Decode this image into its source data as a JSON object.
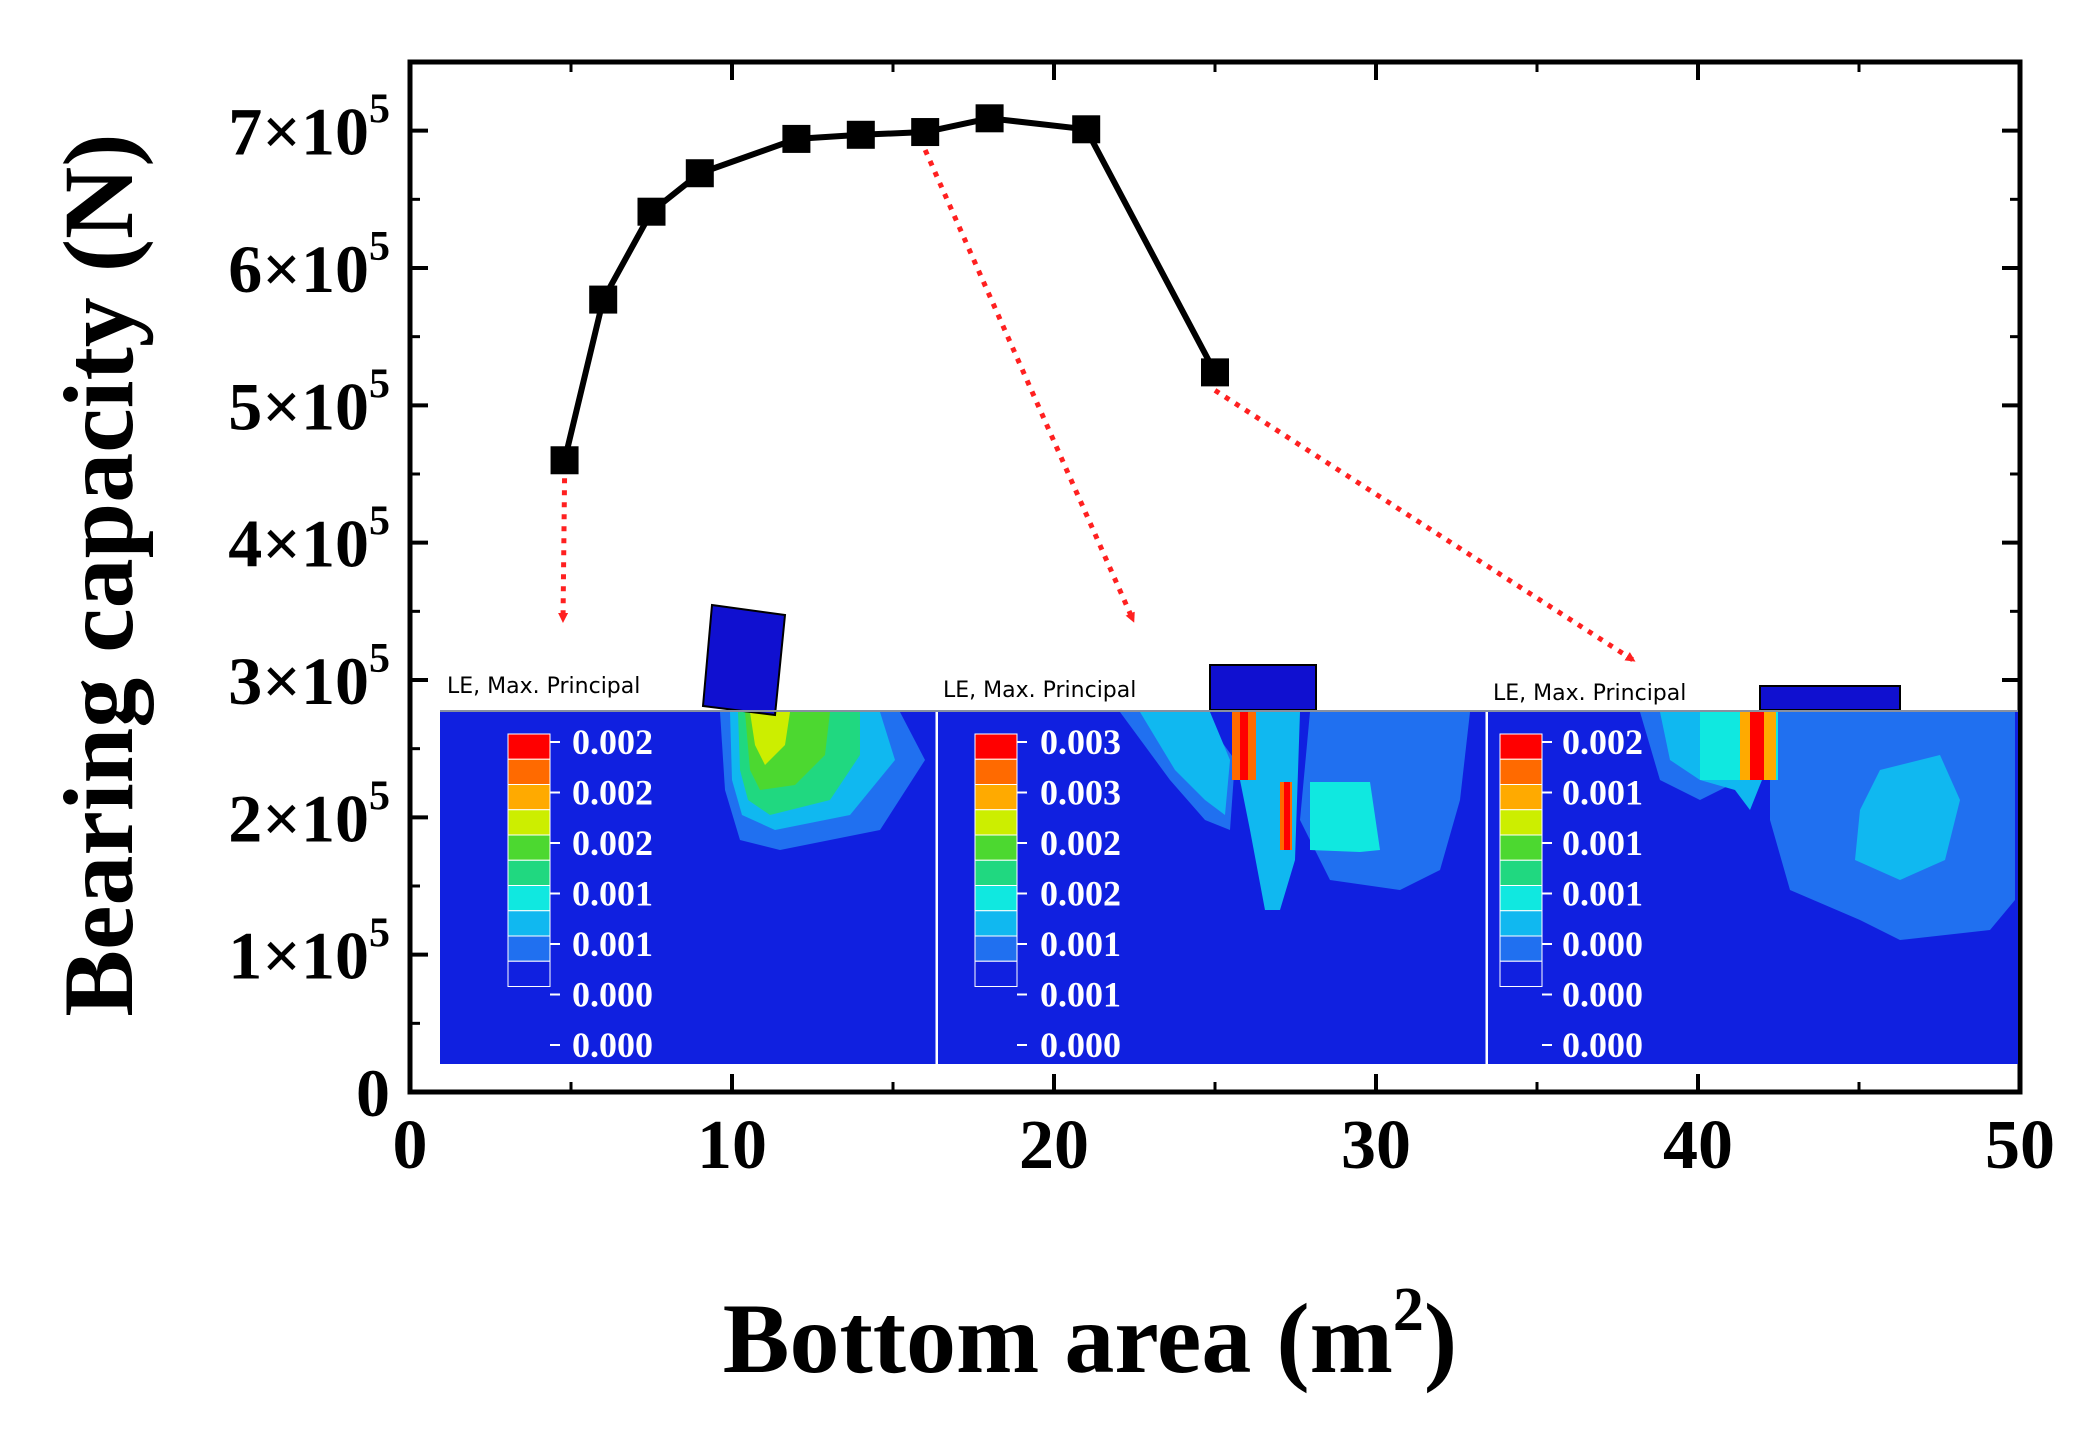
{
  "chart_data": {
    "type": "line",
    "xlabel_main": "Bottom area (m",
    "xlabel_sup": "2",
    "xlabel_close": ")",
    "ylabel": "Bearing capacity (N)",
    "xlim": [
      0,
      50
    ],
    "ylim": [
      0,
      750000
    ],
    "x_ticks": [
      "0",
      "10",
      "20",
      "30",
      "40",
      "50"
    ],
    "x_tick_values": [
      0,
      10,
      20,
      30,
      40,
      50
    ],
    "y_ticks": [
      {
        "value": 0,
        "mant": "0",
        "exp": ""
      },
      {
        "value": 100000,
        "mant": "1×10",
        "exp": "5"
      },
      {
        "value": 200000,
        "mant": "2×10",
        "exp": "5"
      },
      {
        "value": 300000,
        "mant": "3×10",
        "exp": "5"
      },
      {
        "value": 400000,
        "mant": "4×10",
        "exp": "5"
      },
      {
        "value": 500000,
        "mant": "5×10",
        "exp": "5"
      },
      {
        "value": 600000,
        "mant": "6×10",
        "exp": "5"
      },
      {
        "value": 700000,
        "mant": "7×10",
        "exp": "5"
      }
    ],
    "series": [
      {
        "name": "Bearing capacity",
        "x": [
          4.8,
          6.0,
          7.5,
          9.0,
          12.0,
          14.0,
          16.0,
          18.0,
          21.0,
          25.0
        ],
        "y": [
          460000,
          577000,
          641000,
          669000,
          694000,
          697000,
          699000,
          709000,
          701000,
          524000
        ]
      }
    ],
    "line_color": "#000000",
    "arrow_color": "#ff2020",
    "insets": [
      {
        "title": "LE, Max. Principal",
        "legend_values": [
          "0.002",
          "0.002",
          "0.002",
          "0.001",
          "0.001",
          "0.000",
          "0.000"
        ],
        "source_point_index": 0
      },
      {
        "title": "LE, Max. Principal",
        "legend_values": [
          "0.003",
          "0.003",
          "0.002",
          "0.002",
          "0.001",
          "0.001",
          "0.000"
        ],
        "source_point_index": 6
      },
      {
        "title": "LE, Max. Principal",
        "legend_values": [
          "0.002",
          "0.001",
          "0.001",
          "0.001",
          "0.000",
          "0.000",
          "0.000"
        ],
        "source_point_index": 9
      }
    ],
    "legend_colors": [
      "#ff0000",
      "#ff6a00",
      "#ffaa00",
      "#ccee00",
      "#4cd830",
      "#20d880",
      "#10e8e0",
      "#10b8f0",
      "#2070f0",
      "#1020e0"
    ]
  }
}
